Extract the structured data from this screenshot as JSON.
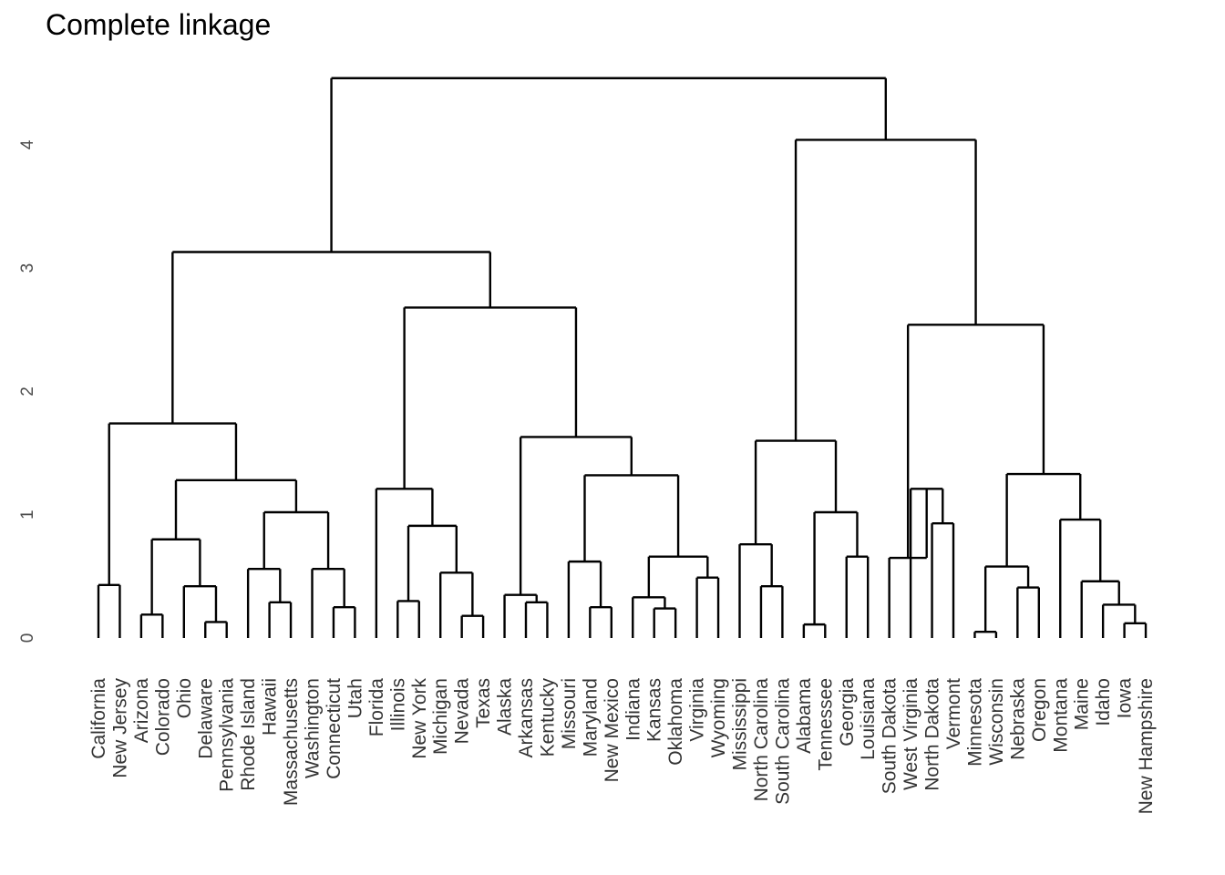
{
  "chart_data": {
    "type": "dendrogram",
    "title": "Complete linkage",
    "xlabel": "",
    "ylabel": "",
    "ylim": [
      0,
      4.5
    ],
    "yticks": [
      0,
      1,
      2,
      3,
      4
    ],
    "grid": false,
    "leaves": [
      "California",
      "New Jersey",
      "Arizona",
      "Colorado",
      "Ohio",
      "Delaware",
      "Pennsylvania",
      "Rhode Island",
      "Hawaii",
      "Massachusetts",
      "Washington",
      "Connecticut",
      "Utah",
      "Florida",
      "Illinois",
      "New York",
      "Michigan",
      "Nevada",
      "Texas",
      "Alaska",
      "Arkansas",
      "Kentucky",
      "Missouri",
      "Maryland",
      "New Mexico",
      "Indiana",
      "Kansas",
      "Oklahoma",
      "Virginia",
      "Wyoming",
      "Mississippi",
      "North Carolina",
      "South Carolina",
      "Alabama",
      "Tennessee",
      "Georgia",
      "Louisiana",
      "South Dakota",
      "West Virginia",
      "North Dakota",
      "Vermont",
      "Minnesota",
      "Wisconsin",
      "Nebraska",
      "Oregon",
      "Montana",
      "Maine",
      "Idaho",
      "Iowa",
      "New Hampshire"
    ],
    "merges": [
      {
        "a": "California",
        "b": "New Jersey",
        "height": 0.43
      },
      {
        "a": "Arizona",
        "b": "Colorado",
        "height": 0.19
      },
      {
        "a": "Delaware",
        "b": "Pennsylvania",
        "height": 0.13
      },
      {
        "a": "Ohio",
        "b": "c3",
        "height": 0.42
      },
      {
        "a": "c2",
        "b": "c4",
        "height": 0.8
      },
      {
        "a": "Hawaii",
        "b": "Massachusetts",
        "height": 0.29
      },
      {
        "a": "Rhode Island",
        "b": "c6",
        "height": 0.56
      },
      {
        "a": "Connecticut",
        "b": "Utah",
        "height": 0.25
      },
      {
        "a": "Washington",
        "b": "c8",
        "height": 0.56
      },
      {
        "a": "c7",
        "b": "c9",
        "height": 1.02
      },
      {
        "a": "c5",
        "b": "c10",
        "height": 1.28
      },
      {
        "a": "c1",
        "b": "c11",
        "height": 1.74
      },
      {
        "a": "Illinois",
        "b": "New York",
        "height": 0.3
      },
      {
        "a": "Nevada",
        "b": "Texas",
        "height": 0.18
      },
      {
        "a": "Michigan",
        "b": "c14",
        "height": 0.53
      },
      {
        "a": "c13",
        "b": "c15",
        "height": 0.91
      },
      {
        "a": "Florida",
        "b": "c16",
        "height": 1.21
      },
      {
        "a": "Arkansas",
        "b": "Kentucky",
        "height": 0.29
      },
      {
        "a": "Alaska",
        "b": "c18",
        "height": 0.35
      },
      {
        "a": "Maryland",
        "b": "New Mexico",
        "height": 0.25
      },
      {
        "a": "Missouri",
        "b": "c20",
        "height": 0.62
      },
      {
        "a": "Kansas",
        "b": "Oklahoma",
        "height": 0.24
      },
      {
        "a": "Indiana",
        "b": "c22",
        "height": 0.33
      },
      {
        "a": "Virginia",
        "b": "Wyoming",
        "height": 0.49
      },
      {
        "a": "c23",
        "b": "c24",
        "height": 0.66
      },
      {
        "a": "c21",
        "b": "c25",
        "height": 1.32
      },
      {
        "a": "c19",
        "b": "c26",
        "height": 1.63
      },
      {
        "a": "c17",
        "b": "c27",
        "height": 2.68
      },
      {
        "a": "c12",
        "b": "c28",
        "height": 3.13
      },
      {
        "a": "North Carolina",
        "b": "South Carolina",
        "height": 0.42
      },
      {
        "a": "Mississippi",
        "b": "c30",
        "height": 0.76
      },
      {
        "a": "Alabama",
        "b": "Tennessee",
        "height": 0.11
      },
      {
        "a": "Georgia",
        "b": "Louisiana",
        "height": 0.66
      },
      {
        "a": "c32",
        "b": "c33",
        "height": 1.02
      },
      {
        "a": "c31",
        "b": "c34",
        "height": 1.6
      },
      {
        "a": "North Dakota",
        "b": "Vermont",
        "height": 0.93
      },
      {
        "a": "West Virginia",
        "b": "c36",
        "height": 1.21
      },
      {
        "a": "South Dakota",
        "b": "c37",
        "height": 0.65
      },
      {
        "a": "Minnesota",
        "b": "Wisconsin",
        "height": 0.05
      },
      {
        "a": "Nebraska",
        "b": "Oregon",
        "height": 0.41
      },
      {
        "a": "c39",
        "b": "c40",
        "height": 0.58
      },
      {
        "a": "Iowa",
        "b": "New Hampshire",
        "height": 0.12
      },
      {
        "a": "Idaho",
        "b": "c42",
        "height": 0.27
      },
      {
        "a": "Maine",
        "b": "c43",
        "height": 0.46
      },
      {
        "a": "Montana",
        "b": "c44",
        "height": 0.96
      },
      {
        "a": "c41",
        "b": "c45",
        "height": 1.33
      },
      {
        "a": "c38",
        "b": "c46",
        "height": 2.54
      },
      {
        "a": "c35",
        "b": "c47",
        "height": 4.04
      },
      {
        "a": "c29",
        "b": "c48",
        "height": 4.54
      }
    ]
  }
}
